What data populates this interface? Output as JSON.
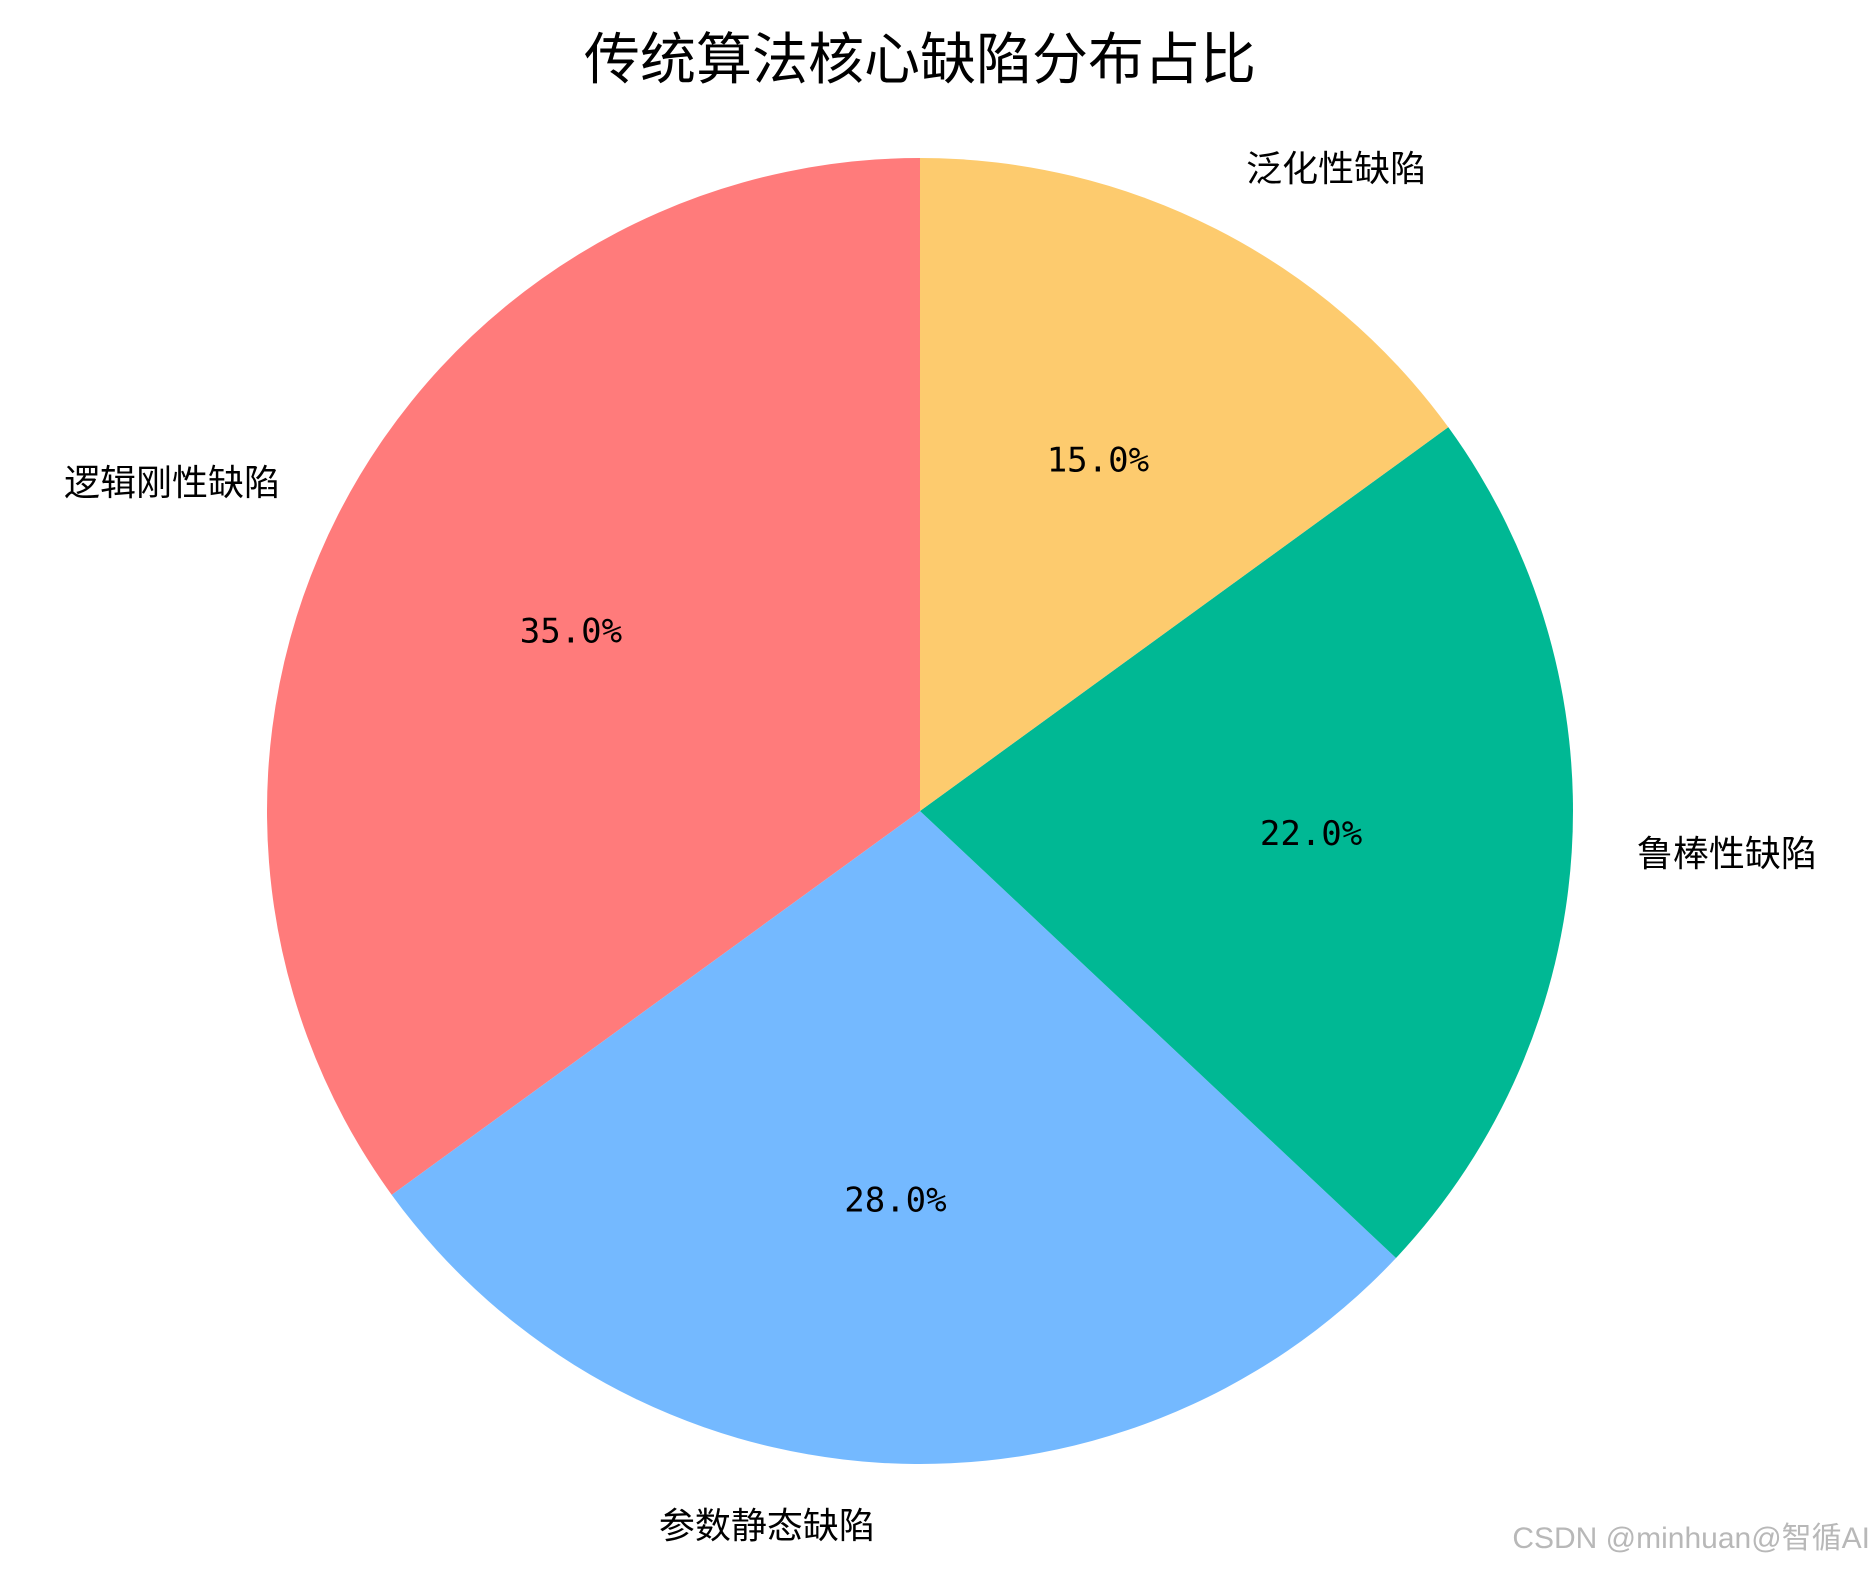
{
  "chart_data": {
    "type": "pie",
    "title": "传统算法核心缺陷分布占比",
    "categories": [
      "逻辑刚性缺陷",
      "参数静态缺陷",
      "鲁棒性缺陷",
      "泛化性缺陷"
    ],
    "values": [
      35,
      28,
      22,
      15
    ],
    "value_labels": [
      "35.0%",
      "28.0%",
      "22.0%",
      "15.0%"
    ],
    "colors": [
      "#ff7b7b",
      "#74b9ff",
      "#00b894",
      "#fdcb6e"
    ],
    "watermark": "CSDN @minhuan@智循AI"
  }
}
